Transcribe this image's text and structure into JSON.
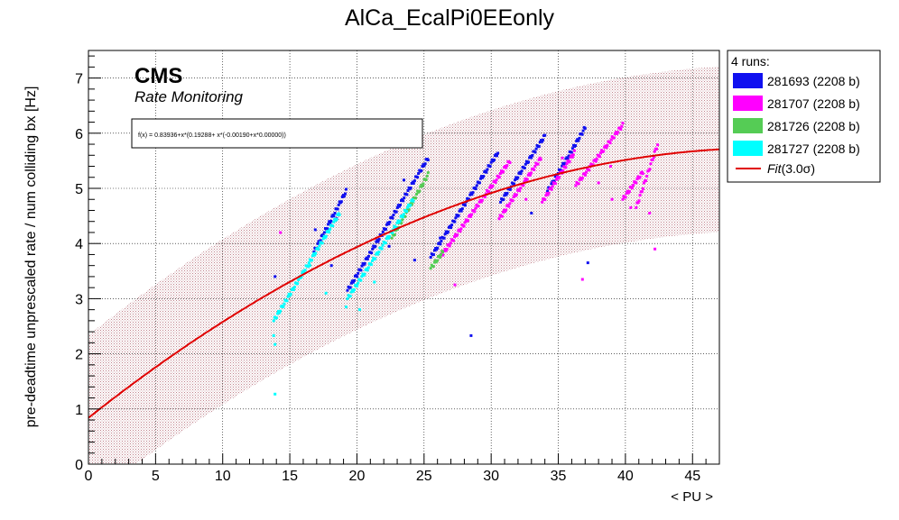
{
  "chart_data": {
    "type": "scatter",
    "title": "AlCa_EcalPi0EEonly",
    "xlabel": "< PU >",
    "ylabel": "pre-deadtime unprescaled rate / num colliding bx [Hz]",
    "xlim": [
      0,
      47
    ],
    "ylim": [
      0,
      7.5
    ],
    "xticks": [
      0,
      5,
      10,
      15,
      20,
      25,
      30,
      35,
      40,
      45
    ],
    "yticks": [
      0,
      1,
      2,
      3,
      4,
      5,
      6,
      7
    ],
    "grid": true,
    "cms_label": "CMS",
    "cms_sublabel": "Rate Monitoring",
    "formula": "f(x) = 0.83936+x*(0.19288+ x*(-0.00190+x*0.00000))",
    "fit": {
      "c0": 0.83936,
      "c1": 0.19288,
      "c2": -0.0019,
      "c3": 0.0,
      "sigma_band": 1.5,
      "color": "#e00000"
    },
    "legend": {
      "position": "right",
      "header": "4 runs:",
      "entries": [
        {
          "label": "281693 (2208 b)",
          "color": "#1010f0"
        },
        {
          "label": "281707 (2208 b)",
          "color": "#ff00ff"
        },
        {
          "label": "281726 (2208 b)",
          "color": "#55cc55"
        },
        {
          "label": "281727 (2208 b)",
          "color": "#00ffff"
        }
      ],
      "fit_label": "Fit",
      "fit_suffix": "(3.0σ)"
    },
    "series": [
      {
        "name": "281693 (2208 b)",
        "color": "#1010f0",
        "segments": [
          [
            [
              16.8,
              3.85
            ],
            [
              19.2,
              4.95
            ]
          ],
          [
            [
              19.3,
              3.15
            ],
            [
              25.3,
              5.55
            ]
          ],
          [
            [
              25.5,
              3.75
            ],
            [
              30.5,
              5.65
            ]
          ],
          [
            [
              30.7,
              4.75
            ],
            [
              34.0,
              5.95
            ]
          ],
          [
            [
              34.2,
              4.95
            ],
            [
              37.0,
              6.1
            ]
          ]
        ],
        "scatter": [
          [
            13.9,
            3.4
          ],
          [
            16.9,
            4.25
          ],
          [
            18.1,
            3.6
          ],
          [
            18.5,
            4.45
          ],
          [
            23.5,
            5.15
          ],
          [
            22.4,
            3.95
          ],
          [
            24.3,
            3.7
          ],
          [
            28.5,
            2.33
          ],
          [
            26.2,
            4.1
          ],
          [
            37.2,
            3.65
          ],
          [
            33.0,
            4.55
          ]
        ]
      },
      {
        "name": "281707 (2208 b)",
        "color": "#ff00ff",
        "segments": [
          [
            [
              26.2,
              3.75
            ],
            [
              31.4,
              5.5
            ]
          ],
          [
            [
              30.6,
              4.45
            ],
            [
              33.7,
              5.55
            ]
          ],
          [
            [
              33.8,
              4.75
            ],
            [
              36.2,
              5.65
            ]
          ],
          [
            [
              36.3,
              5.05
            ],
            [
              39.8,
              6.15
            ]
          ],
          [
            [
              39.8,
              4.8
            ],
            [
              41.3,
              5.3
            ]
          ],
          [
            [
              40.8,
              4.65
            ],
            [
              42.4,
              5.8
            ]
          ]
        ],
        "scatter": [
          [
            14.3,
            4.2
          ],
          [
            27.3,
            3.25
          ],
          [
            32.6,
            4.8
          ],
          [
            35.3,
            5.55
          ],
          [
            36.8,
            3.35
          ],
          [
            38.0,
            5.1
          ],
          [
            39.0,
            4.8
          ],
          [
            40.4,
            4.65
          ],
          [
            42.2,
            3.9
          ],
          [
            41.8,
            4.55
          ],
          [
            38.9,
            5.4
          ]
        ]
      },
      {
        "name": "281726 (2208 b)",
        "color": "#55cc55",
        "segments": [
          [
            [
              22.6,
              4.1
            ],
            [
              25.3,
              5.25
            ]
          ],
          [
            [
              25.5,
              3.55
            ],
            [
              26.4,
              3.85
            ]
          ]
        ],
        "scatter": []
      },
      {
        "name": "281727 (2208 b)",
        "color": "#00ffff",
        "segments": [
          [
            [
              13.8,
              2.6
            ],
            [
              18.7,
              4.55
            ]
          ],
          [
            [
              19.3,
              3.0
            ],
            [
              24.2,
              4.8
            ]
          ]
        ],
        "scatter": [
          [
            13.9,
            1.27
          ],
          [
            13.8,
            2.33
          ],
          [
            13.9,
            2.17
          ],
          [
            16.5,
            3.6
          ],
          [
            17.7,
            3.1
          ],
          [
            19.2,
            2.85
          ],
          [
            20.2,
            2.8
          ],
          [
            21.3,
            3.3
          ]
        ]
      }
    ]
  }
}
